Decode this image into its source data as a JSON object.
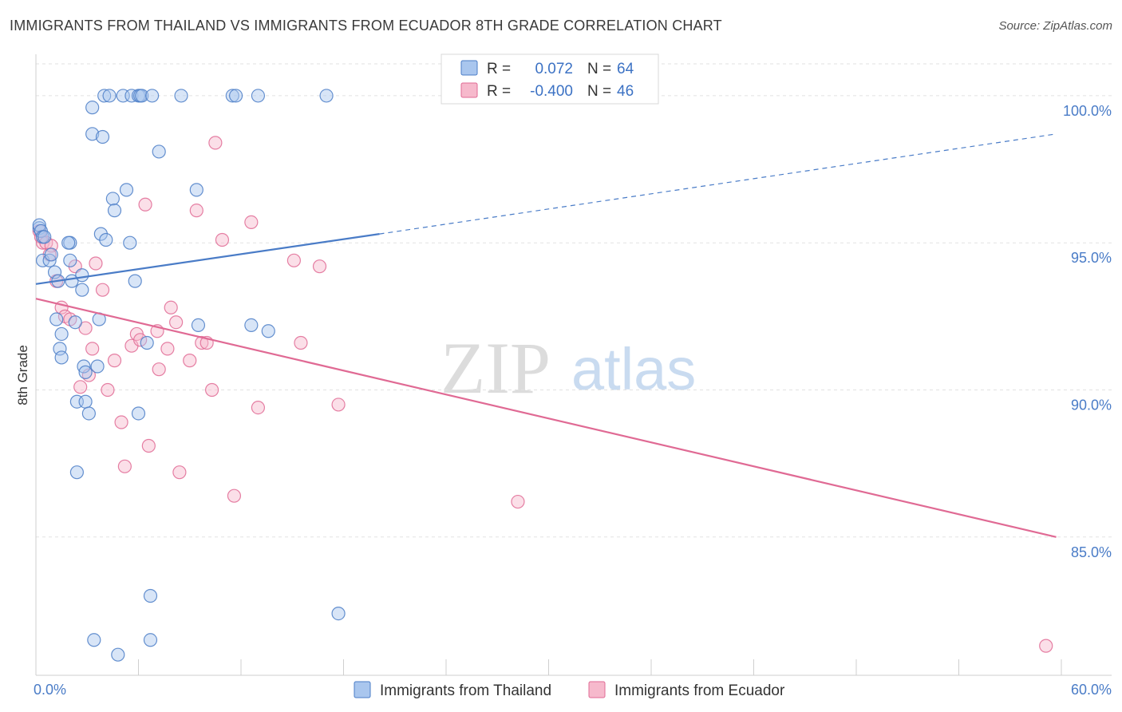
{
  "title": "IMMIGRANTS FROM THAILAND VS IMMIGRANTS FROM ECUADOR 8TH GRADE CORRELATION CHART",
  "source": "Source: ZipAtlas.com",
  "watermark": {
    "zip": "ZIP",
    "atlas": "atlas"
  },
  "colors": {
    "thailand": "#4a7cc7",
    "thailand_fill": "#a9c6ee",
    "ecuador": "#e06a94",
    "ecuador_fill": "#f6b9cc",
    "grid": "#e2e2e2",
    "tick_text": "#4a7cc7"
  },
  "legend": {
    "items": [
      {
        "r_label": "R =",
        "r_value": "0.072",
        "n_label": "N =",
        "n_value": "64"
      },
      {
        "r_label": "R =",
        "r_value": "-0.400",
        "n_label": "N =",
        "n_value": "46"
      }
    ]
  },
  "chart_data": {
    "type": "scatter",
    "title": "IMMIGRANTS FROM THAILAND VS IMMIGRANTS FROM ECUADOR 8TH GRADE CORRELATION CHART",
    "xlabel": "",
    "ylabel": "8th Grade",
    "xlim": [
      0,
      60
    ],
    "ylim": [
      80.3,
      101.3
    ],
    "x_tick_labels": [
      "0.0%",
      "60.0%"
    ],
    "y_ticks": [
      85,
      90,
      95,
      100
    ],
    "y_tick_labels": [
      "85.0%",
      "90.0%",
      "95.0%",
      "100.0%"
    ],
    "series": [
      {
        "name": "Immigrants from Thailand",
        "r": 0.072,
        "n": 64,
        "trend": {
          "x0": 0,
          "y0": 93.6,
          "x1": 20.1,
          "y1": 95.3,
          "dash_x1": 59.7,
          "dash_y1": 98.7
        },
        "points": [
          [
            0.2,
            95.5
          ],
          [
            0.2,
            95.6
          ],
          [
            0.3,
            95.4
          ],
          [
            0.4,
            95.2
          ],
          [
            0.5,
            95.2
          ],
          [
            0.4,
            94.4
          ],
          [
            0.8,
            94.4
          ],
          [
            0.9,
            94.6
          ],
          [
            1.1,
            94.0
          ],
          [
            1.3,
            93.7
          ],
          [
            1.2,
            92.4
          ],
          [
            1.5,
            91.9
          ],
          [
            1.4,
            91.4
          ],
          [
            1.5,
            91.1
          ],
          [
            2.0,
            95.0
          ],
          [
            1.9,
            95.0
          ],
          [
            2.1,
            93.7
          ],
          [
            2.3,
            92.3
          ],
          [
            2.4,
            89.6
          ],
          [
            2.4,
            87.2
          ],
          [
            2.7,
            93.9
          ],
          [
            2.7,
            93.4
          ],
          [
            2.8,
            90.8
          ],
          [
            2.9,
            90.6
          ],
          [
            2.9,
            89.6
          ],
          [
            3.1,
            89.2
          ],
          [
            3.3,
            99.6
          ],
          [
            3.3,
            98.7
          ],
          [
            3.6,
            90.8
          ],
          [
            3.7,
            92.4
          ],
          [
            3.8,
            95.3
          ],
          [
            3.9,
            98.6
          ],
          [
            4.0,
            100.0
          ],
          [
            4.3,
            100.0
          ],
          [
            4.1,
            95.1
          ],
          [
            4.5,
            96.5
          ],
          [
            4.6,
            96.1
          ],
          [
            5.1,
            100.0
          ],
          [
            5.3,
            96.8
          ],
          [
            5.6,
            100.0
          ],
          [
            5.5,
            95.0
          ],
          [
            5.8,
            93.7
          ],
          [
            6.0,
            100.0
          ],
          [
            6.1,
            100.0
          ],
          [
            6.2,
            100.0
          ],
          [
            6.0,
            89.2
          ],
          [
            6.5,
            91.6
          ],
          [
            6.8,
            100.0
          ],
          [
            7.2,
            98.1
          ],
          [
            8.5,
            100.0
          ],
          [
            9.4,
            96.8
          ],
          [
            9.5,
            92.2
          ],
          [
            11.5,
            100.0
          ],
          [
            11.7,
            100.0
          ],
          [
            12.6,
            92.2
          ],
          [
            13.0,
            100.0
          ],
          [
            13.6,
            92.0
          ],
          [
            17.0,
            100.0
          ],
          [
            6.7,
            83.0
          ],
          [
            6.7,
            81.5
          ],
          [
            17.7,
            82.4
          ],
          [
            3.4,
            81.5
          ],
          [
            4.8,
            81.0
          ],
          [
            2.0,
            94.4
          ]
        ]
      },
      {
        "name": "Immigrants from Ecuador",
        "r": -0.4,
        "n": 46,
        "trend": {
          "x0": 0,
          "y0": 93.1,
          "x1": 59.7,
          "y1": 85.0
        },
        "points": [
          [
            0.2,
            95.4
          ],
          [
            0.3,
            95.2
          ],
          [
            0.4,
            95.0
          ],
          [
            0.6,
            95.0
          ],
          [
            0.9,
            94.9
          ],
          [
            0.8,
            94.6
          ],
          [
            1.2,
            93.7
          ],
          [
            1.5,
            92.8
          ],
          [
            1.7,
            92.5
          ],
          [
            2.0,
            92.4
          ],
          [
            2.3,
            94.2
          ],
          [
            2.6,
            90.1
          ],
          [
            3.1,
            90.5
          ],
          [
            3.3,
            91.4
          ],
          [
            2.9,
            92.1
          ],
          [
            3.5,
            94.3
          ],
          [
            3.9,
            93.4
          ],
          [
            4.2,
            90.0
          ],
          [
            4.6,
            91.0
          ],
          [
            5.0,
            88.9
          ],
          [
            5.2,
            87.4
          ],
          [
            5.6,
            91.5
          ],
          [
            5.9,
            91.9
          ],
          [
            6.1,
            91.7
          ],
          [
            6.4,
            96.3
          ],
          [
            6.6,
            88.1
          ],
          [
            7.1,
            92.0
          ],
          [
            7.2,
            90.7
          ],
          [
            7.7,
            91.4
          ],
          [
            7.9,
            92.8
          ],
          [
            8.2,
            92.3
          ],
          [
            8.4,
            87.2
          ],
          [
            9.0,
            91.0
          ],
          [
            9.4,
            96.1
          ],
          [
            9.7,
            91.6
          ],
          [
            10.0,
            91.6
          ],
          [
            10.3,
            90.0
          ],
          [
            10.9,
            95.1
          ],
          [
            11.6,
            86.4
          ],
          [
            12.6,
            95.7
          ],
          [
            13.0,
            89.4
          ],
          [
            15.1,
            94.4
          ],
          [
            15.5,
            91.6
          ],
          [
            16.6,
            94.2
          ],
          [
            17.7,
            89.5
          ],
          [
            28.2,
            86.2
          ]
        ],
        "extra_points": [
          [
            10.5,
            98.4
          ],
          [
            59.1,
            81.3
          ]
        ]
      }
    ],
    "legend_position": "top-center",
    "grid": true
  }
}
